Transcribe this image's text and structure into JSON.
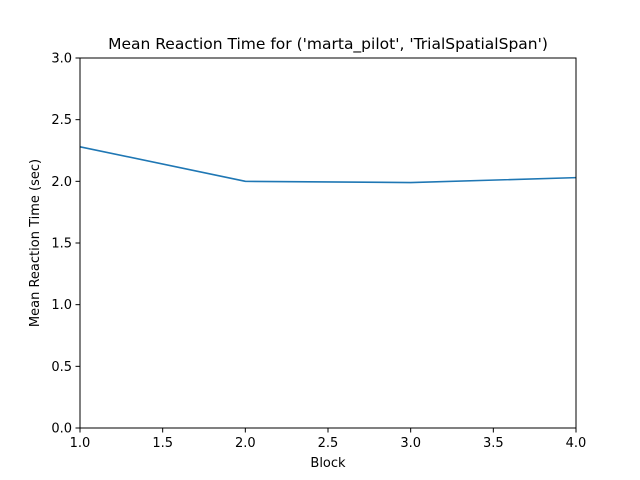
{
  "chart_data": {
    "type": "line",
    "title": "Mean Reaction Time for ('marta_pilot', 'TrialSpatialSpan')",
    "xlabel": "Block",
    "ylabel": "Mean Reaction Time (sec)",
    "xlim": [
      1.0,
      4.0
    ],
    "ylim": [
      0.0,
      3.0
    ],
    "xticks": [
      "1.0",
      "1.5",
      "2.0",
      "2.5",
      "3.0",
      "3.5",
      "4.0"
    ],
    "yticks": [
      "0.0",
      "0.5",
      "1.0",
      "1.5",
      "2.0",
      "2.5",
      "3.0"
    ],
    "grid": false,
    "legend": "none",
    "series": [
      {
        "color": "#1f77b4",
        "x": [
          1,
          2,
          3,
          4
        ],
        "y": [
          2.28,
          2.0,
          1.99,
          2.03
        ]
      }
    ]
  }
}
